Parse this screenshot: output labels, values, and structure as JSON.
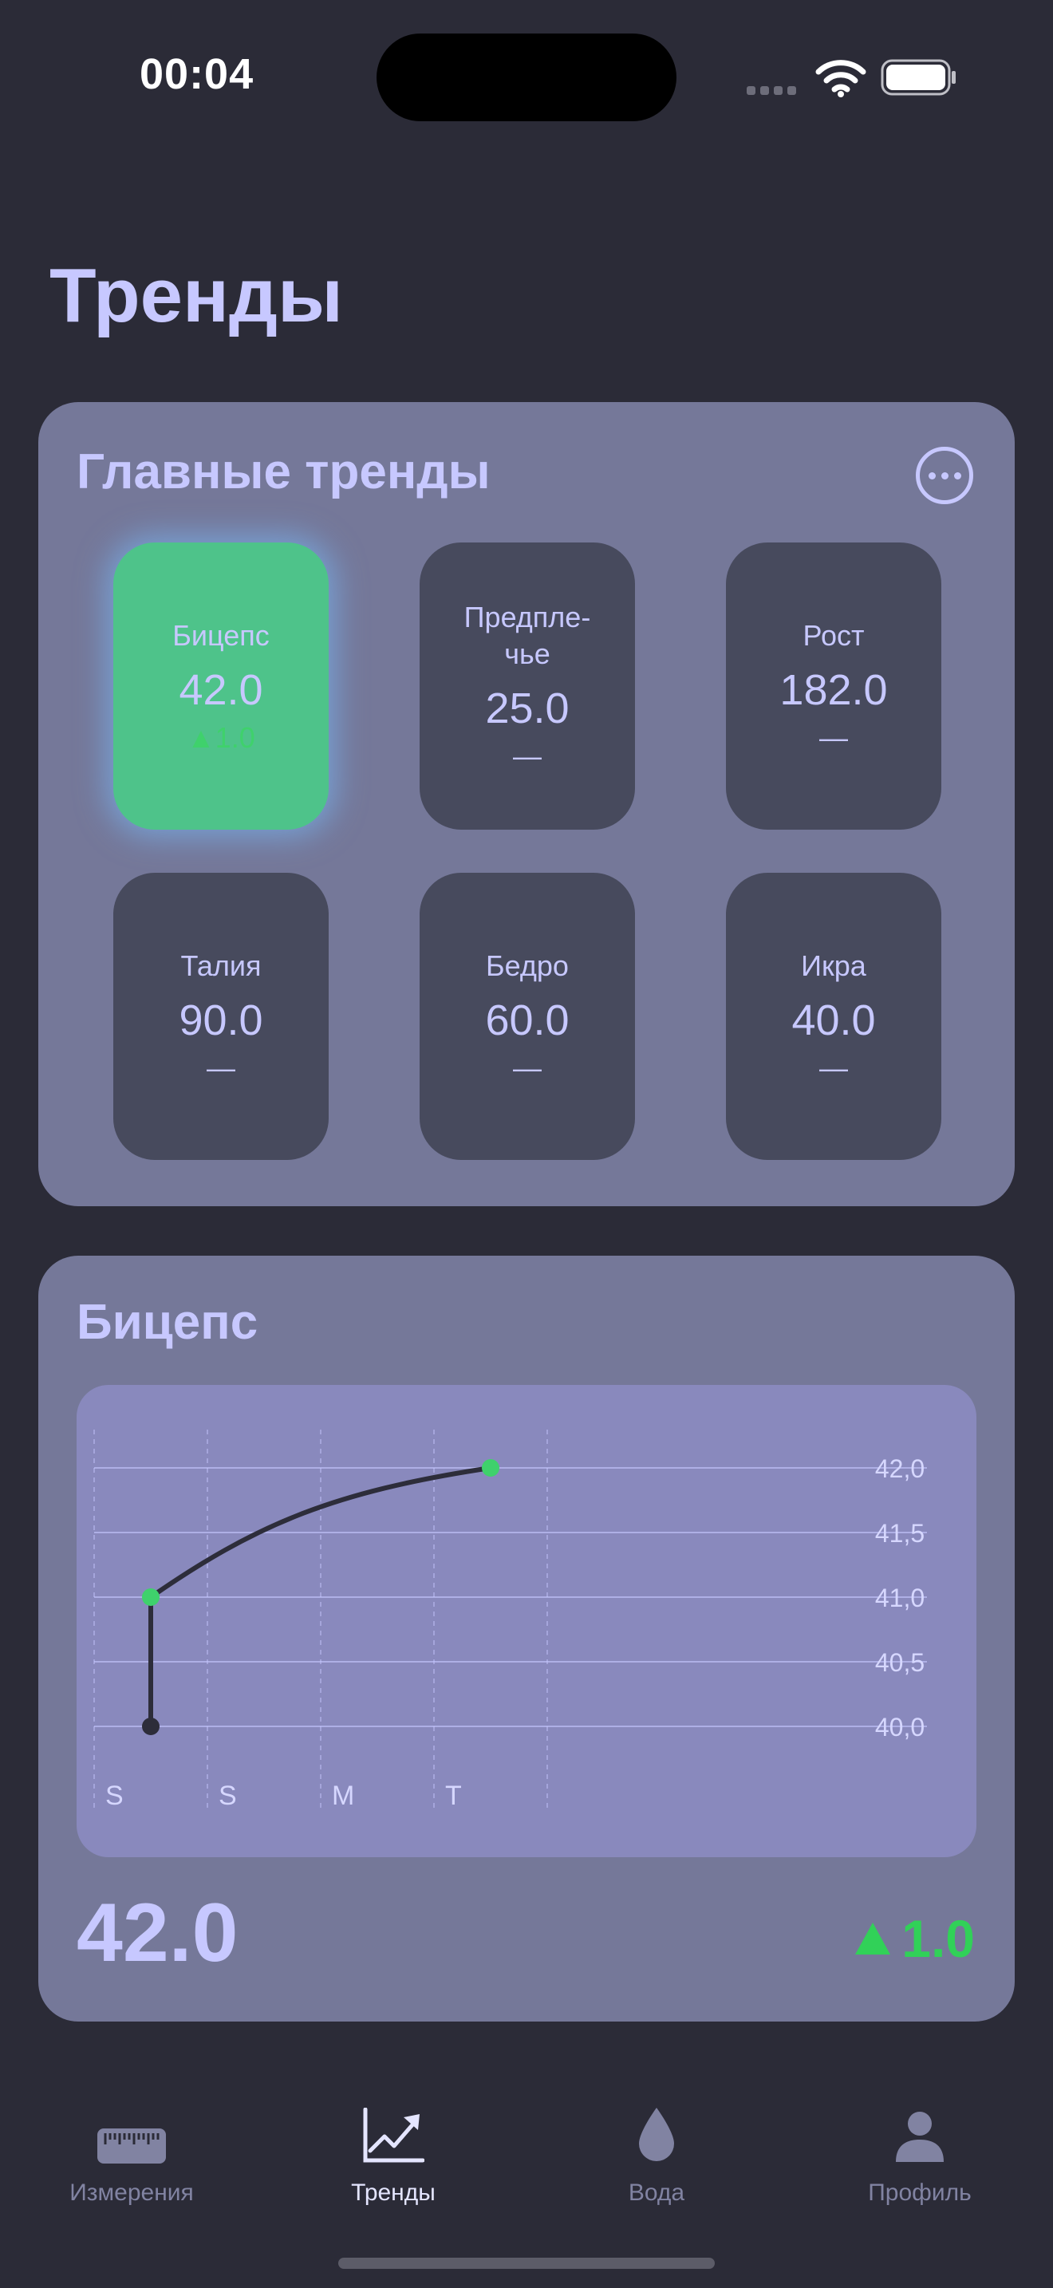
{
  "status_bar": {
    "time": "00:04"
  },
  "page_title": "Тренды",
  "main_trends": {
    "title": "Главные тренды",
    "tiles": [
      {
        "name": "Бицепс",
        "value": "42.0",
        "delta": "▲1.0",
        "active": true
      },
      {
        "name": "Предпле-чье",
        "value": "25.0",
        "delta": "—",
        "active": false
      },
      {
        "name": "Рост",
        "value": "182.0",
        "delta": "—",
        "active": false
      },
      {
        "name": "Талия",
        "value": "90.0",
        "delta": "—",
        "active": false
      },
      {
        "name": "Бедро",
        "value": "60.0",
        "delta": "—",
        "active": false
      },
      {
        "name": "Икра",
        "value": "40.0",
        "delta": "—",
        "active": false
      }
    ]
  },
  "detail": {
    "title": "Бицепс",
    "current_value": "42.0",
    "change": "1.0",
    "change_color": "#31d158"
  },
  "chart_data": {
    "type": "line",
    "x_ticks": [
      "S",
      "S",
      "M",
      "T"
    ],
    "y_ticks": [
      "42,0",
      "41,5",
      "41,0",
      "40,5",
      "40,0"
    ],
    "ylim": [
      40.0,
      42.0
    ],
    "series": [
      {
        "points": [
          {
            "day": 0.5,
            "y": 40.0
          },
          {
            "day": 0.5,
            "y": 41.0
          },
          {
            "day": 3.5,
            "y": 42.0
          }
        ]
      }
    ],
    "line_color": "#2d2d3a",
    "point_color": "#3fd16c",
    "grid": true
  },
  "tab_bar": {
    "items": [
      {
        "label": "Измерения",
        "icon": "ruler-icon",
        "active": false
      },
      {
        "label": "Тренды",
        "icon": "chart-trend-icon",
        "active": true
      },
      {
        "label": "Вода",
        "icon": "drop-icon",
        "active": false
      },
      {
        "label": "Профиль",
        "icon": "person-icon",
        "active": false
      }
    ]
  }
}
